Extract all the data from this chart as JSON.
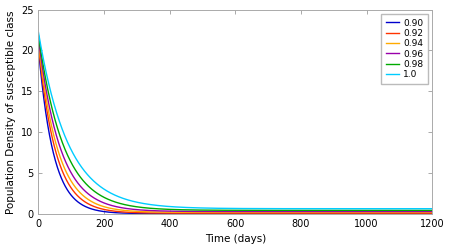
{
  "title": "",
  "xlabel": "Time (days)",
  "ylabel": "Population Density of susceptible class",
  "xlim": [
    0,
    1200
  ],
  "ylim": [
    0,
    25
  ],
  "xticks": [
    0,
    200,
    400,
    600,
    800,
    1000,
    1200
  ],
  "yticks": [
    0,
    5,
    10,
    15,
    20,
    25
  ],
  "legend_labels": [
    "0.90",
    "0.92",
    "0.94",
    "0.96",
    "0.98",
    "1.0"
  ],
  "line_colors": [
    "#0000cc",
    "#ff3300",
    "#ffaa00",
    "#9900aa",
    "#00aa00",
    "#00ccff"
  ],
  "S0_values": [
    20.2,
    20.6,
    21.0,
    21.4,
    21.8,
    22.2
  ],
  "decay_rates": [
    0.022,
    0.019,
    0.017,
    0.015,
    0.013,
    0.011
  ],
  "asymptote_values": [
    0.05,
    0.1,
    0.2,
    0.3,
    0.45,
    0.65
  ],
  "t_max": 1200,
  "n_points": 2000,
  "linewidth": 1.0,
  "background_color": "#ffffff",
  "legend_fontsize": 6.5,
  "axis_fontsize": 7.5,
  "tick_fontsize": 7,
  "spine_color": "#aaaaaa",
  "figure_width": 4.5,
  "figure_height": 2.5
}
